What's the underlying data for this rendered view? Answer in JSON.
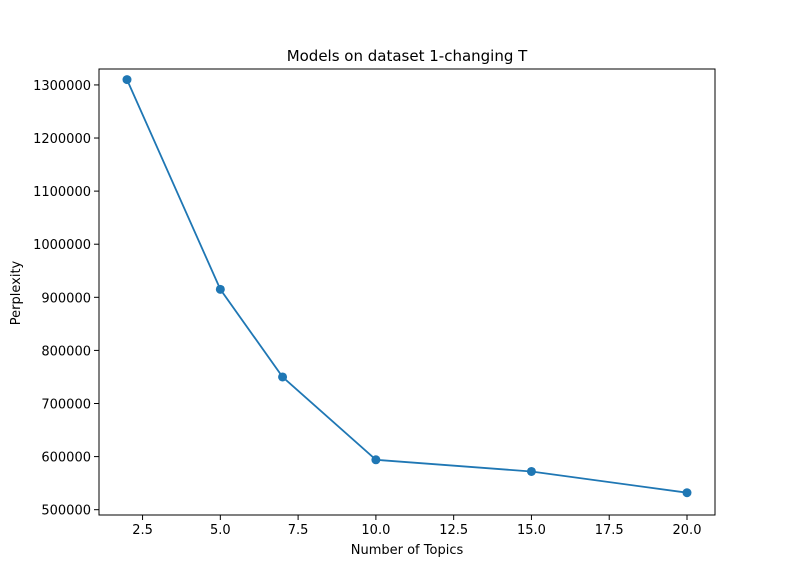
{
  "chart_data": {
    "type": "line",
    "title": "Models on dataset 1-changing T",
    "xlabel": "Number of Topics",
    "ylabel": "Perplexity",
    "xlim": [
      1.1,
      20.9
    ],
    "ylim": [
      490000,
      1330000
    ],
    "x_ticks": [
      2.5,
      5.0,
      7.5,
      10.0,
      12.5,
      15.0,
      17.5,
      20.0
    ],
    "x_tick_labels": [
      "2.5",
      "5.0",
      "7.5",
      "10.0",
      "12.5",
      "15.0",
      "17.5",
      "20.0"
    ],
    "y_ticks": [
      500000,
      600000,
      700000,
      800000,
      900000,
      1000000,
      1100000,
      1200000,
      1300000
    ],
    "y_tick_labels": [
      "500000",
      "600000",
      "700000",
      "800000",
      "900000",
      "1000000",
      "1100000",
      "1200000",
      "1300000"
    ],
    "grid": false,
    "legend": "none",
    "series": [
      {
        "color": "#1f77b4",
        "marker": "circle",
        "x": [
          2,
          5,
          7,
          10,
          15,
          20
        ],
        "y": [
          1310000,
          915000,
          750000,
          594000,
          572000,
          532000
        ]
      }
    ]
  }
}
